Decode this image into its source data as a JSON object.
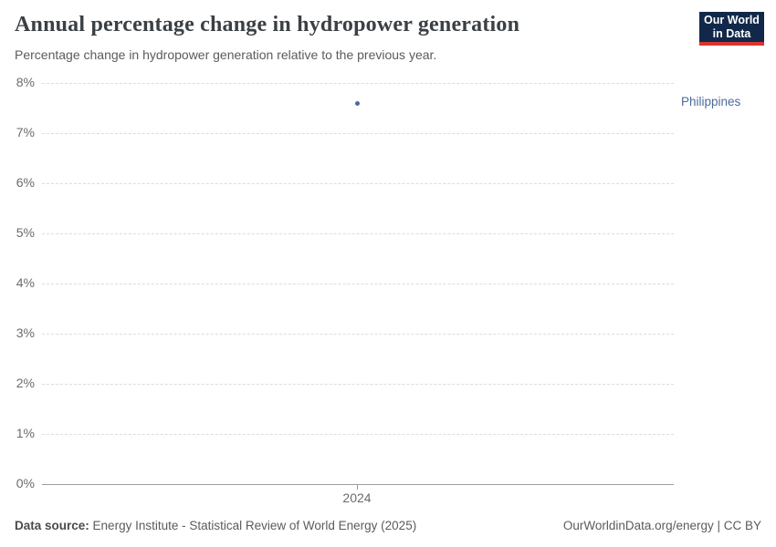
{
  "header": {
    "title": "Annual percentage change in hydropower generation",
    "subtitle": "Percentage change in hydropower generation relative to the previous year."
  },
  "logo": {
    "line1": "Our World",
    "line2": "in Data",
    "background_color": "#12284a",
    "accent_color": "#d8352e"
  },
  "chart_data": {
    "type": "scatter",
    "title": "Annual percentage change in hydropower generation",
    "subtitle": "Percentage change in hydropower generation relative to the previous year.",
    "series": [
      {
        "name": "Philippines",
        "color": "#4c6a9c",
        "points": [
          {
            "x": 2024,
            "y": 7.6
          }
        ]
      }
    ],
    "xticks": [
      2024
    ],
    "yticks": [
      0,
      1,
      2,
      3,
      4,
      5,
      6,
      7,
      8
    ],
    "ytick_suffix": "%",
    "ylim": [
      0,
      8
    ],
    "xlabel": "",
    "ylabel": "",
    "grid": "horizontal-dashed",
    "legend_position": "entity-label-right"
  },
  "footer": {
    "source_label": "Data source:",
    "source_text": "Energy Institute - Statistical Review of World Energy (2025)",
    "right_text": "OurWorldinData.org/energy | CC BY"
  }
}
